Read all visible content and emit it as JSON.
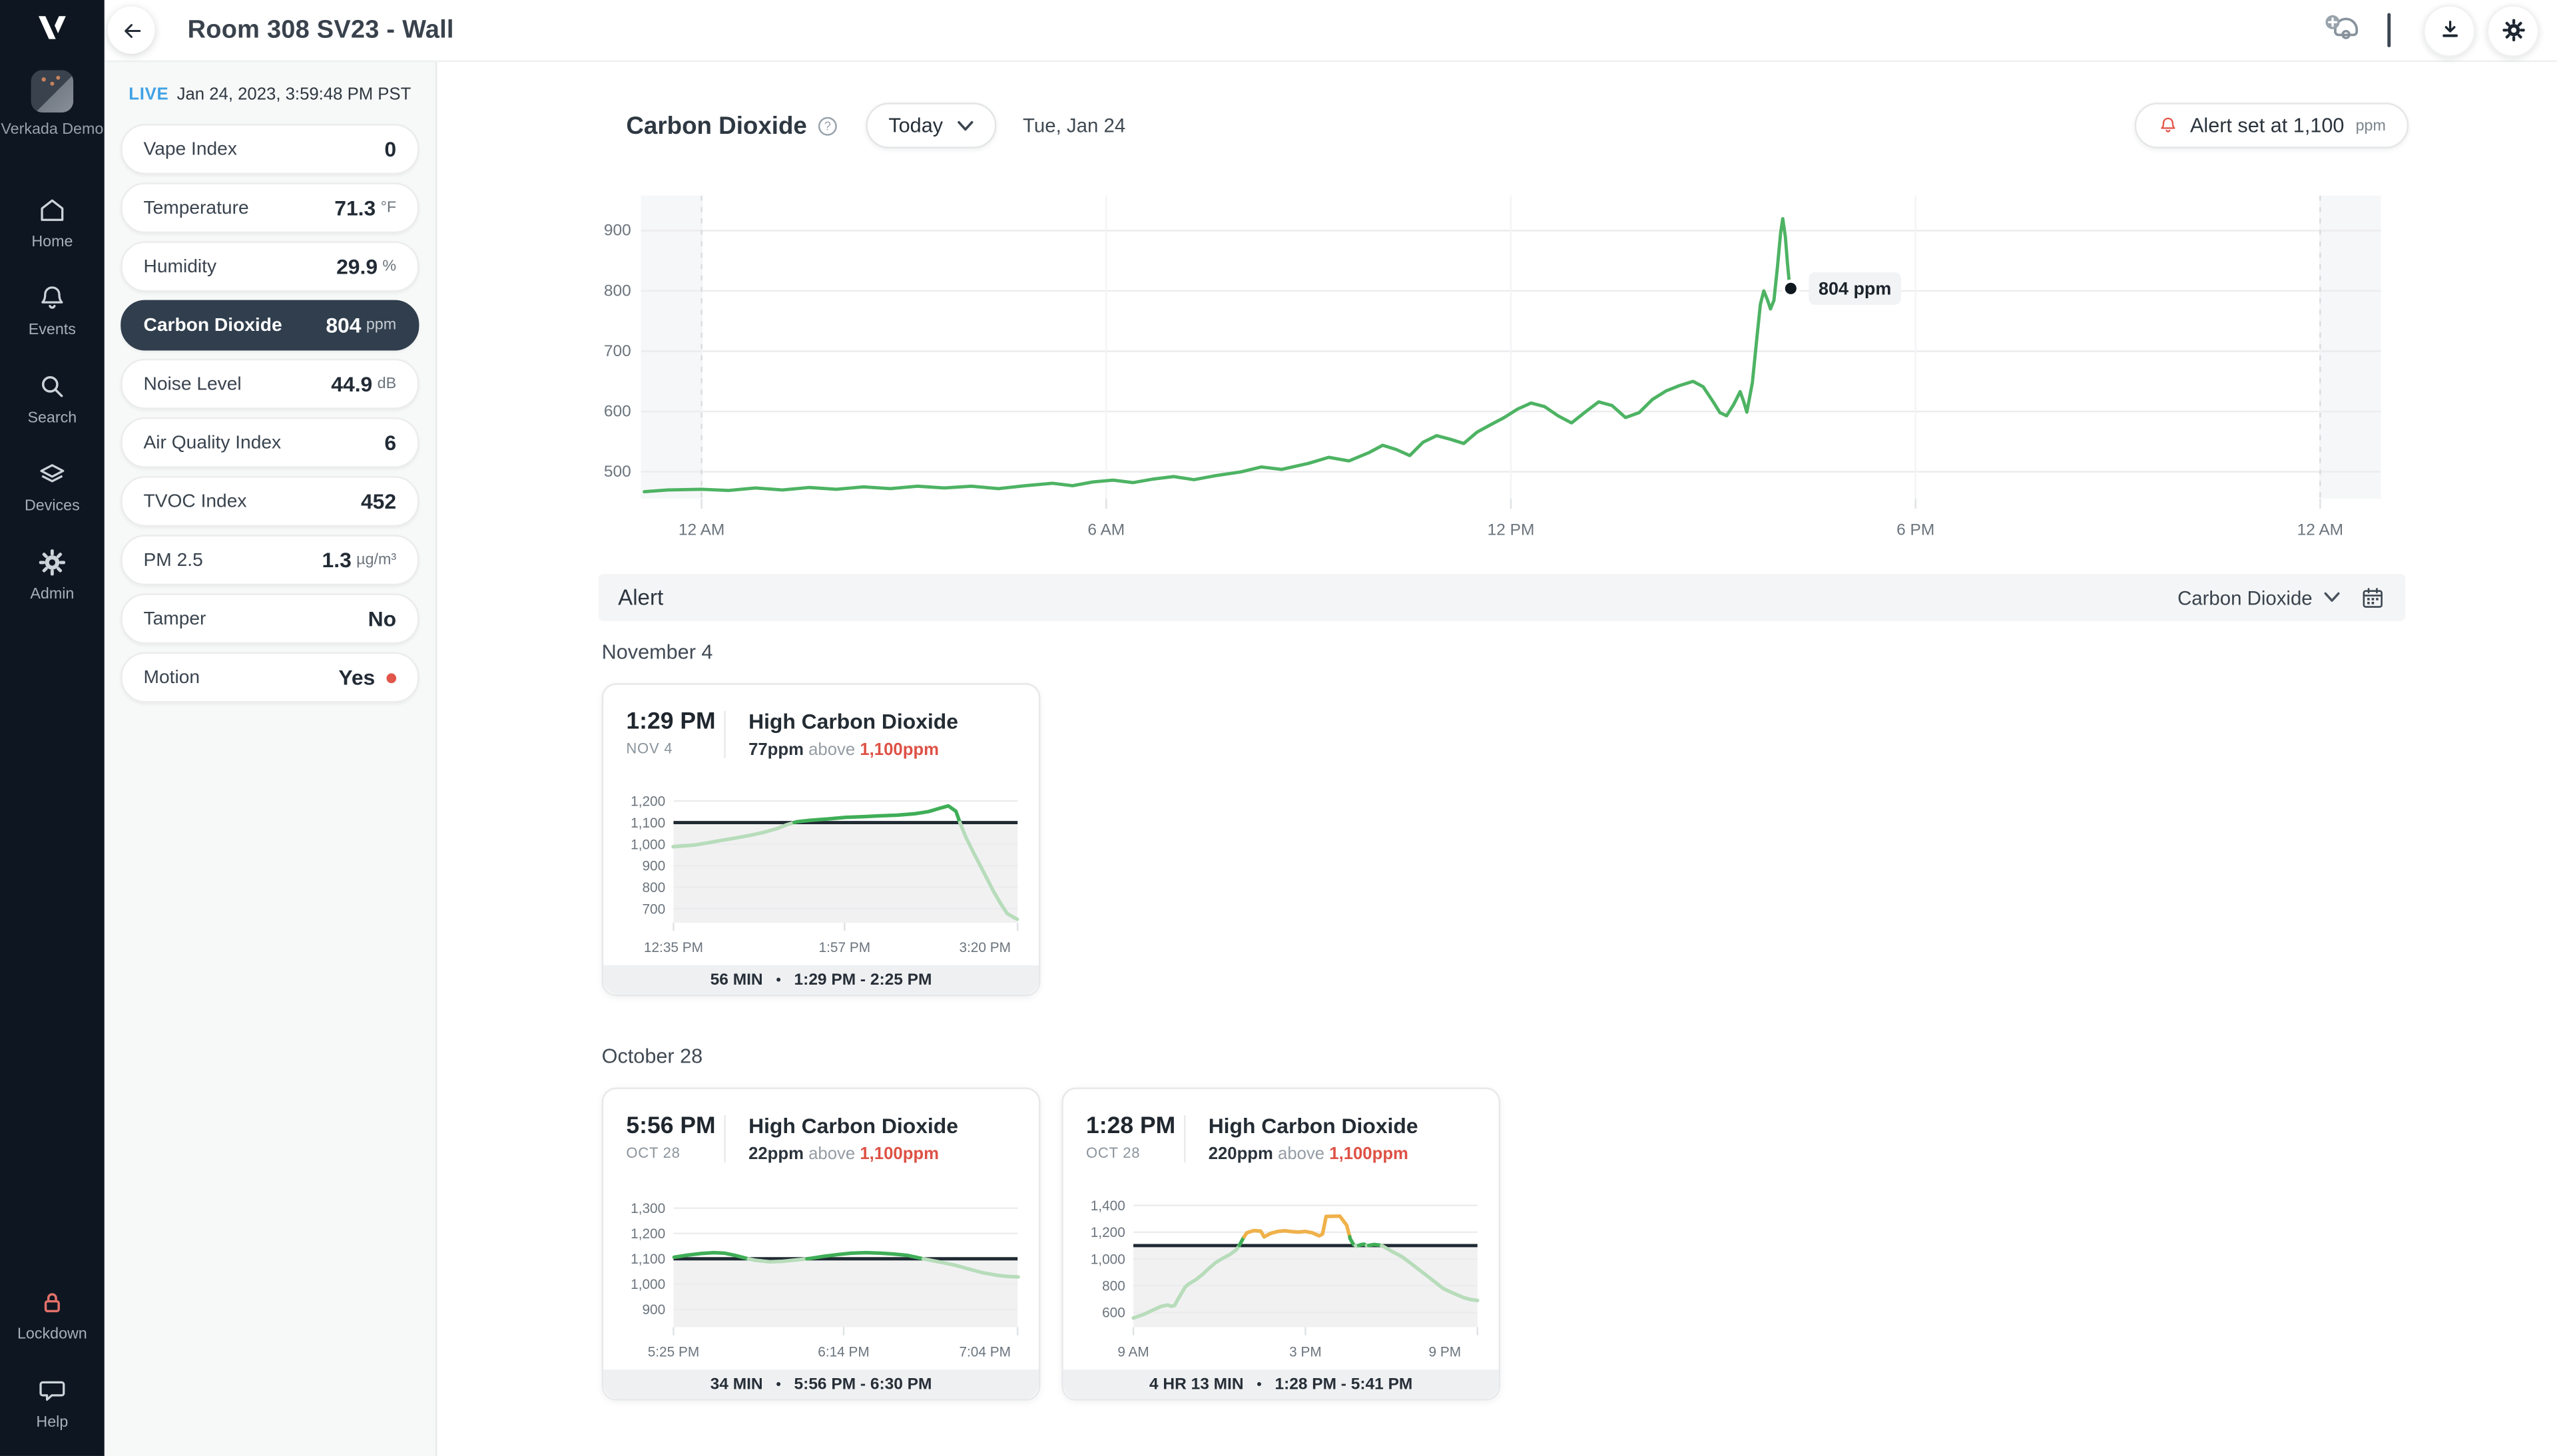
{
  "topbar": {
    "title": "Room 308 SV23 - Wall"
  },
  "nav": {
    "org_name": "Verkada Demo",
    "items": [
      {
        "label": "Home",
        "icon": "home"
      },
      {
        "label": "Events",
        "icon": "bell"
      },
      {
        "label": "Search",
        "icon": "magnifier"
      },
      {
        "label": "Devices",
        "icon": "layers"
      },
      {
        "label": "Admin",
        "icon": "gear"
      }
    ],
    "bottom_items": [
      {
        "label": "Lockdown",
        "icon": "lock"
      },
      {
        "label": "Help",
        "icon": "chat"
      }
    ]
  },
  "icons": {
    "back": "arrow-left",
    "add_camera": "camera-plus",
    "download": "download-tray",
    "settings": "gear",
    "alert": "bell",
    "calendar": "calendar",
    "info": "question-circle",
    "dropdown": "chevron-down",
    "motion": "red-dot"
  },
  "live": {
    "tag": "LIVE",
    "timestamp": "Jan 24, 2023, 3:59:48 PM PST"
  },
  "sensors": [
    {
      "label": "Vape Index",
      "value": "0",
      "unit": "",
      "selected": false,
      "dot": false
    },
    {
      "label": "Temperature",
      "value": "71.3",
      "unit": "°F",
      "selected": false,
      "dot": false
    },
    {
      "label": "Humidity",
      "value": "29.9",
      "unit": "%",
      "selected": false,
      "dot": false
    },
    {
      "label": "Carbon Dioxide",
      "value": "804",
      "unit": "ppm",
      "selected": true,
      "dot": false
    },
    {
      "label": "Noise Level",
      "value": "44.9",
      "unit": "dB",
      "selected": false,
      "dot": false
    },
    {
      "label": "Air Quality Index",
      "value": "6",
      "unit": "",
      "selected": false,
      "dot": false
    },
    {
      "label": "TVOC Index",
      "value": "452",
      "unit": "",
      "selected": false,
      "dot": false
    },
    {
      "label": "PM 2.5",
      "value": "1.3",
      "unit": "µg/m³",
      "selected": false,
      "dot": false
    },
    {
      "label": "Tamper",
      "value": "No",
      "unit": "",
      "selected": false,
      "dot": false
    },
    {
      "label": "Motion",
      "value": "Yes",
      "unit": "",
      "selected": false,
      "dot": true
    }
  ],
  "chart_header": {
    "title": "Carbon Dioxide",
    "range_selector": "Today",
    "date": "Tue, Jan 24",
    "alert_badge_text": "Alert set at 1,100",
    "alert_badge_unit": "ppm"
  },
  "alert_section": {
    "title": "Alert",
    "filter": "Carbon Dioxide"
  },
  "alert_groups": [
    {
      "date": "November 4",
      "cards": [
        {
          "time": "1:29 PM",
          "date": "NOV 4",
          "title": "High Carbon Dioxide",
          "amount": "77ppm",
          "above_word": "above",
          "threshold": "1,100ppm",
          "footer_duration": "56 MIN",
          "footer_range": "1:29 PM - 2:25 PM",
          "chart_index": 1
        }
      ]
    },
    {
      "date": "October 28",
      "cards": [
        {
          "time": "5:56 PM",
          "date": "OCT 28",
          "title": "High Carbon Dioxide",
          "amount": "22ppm",
          "above_word": "above",
          "threshold": "1,100ppm",
          "footer_duration": "34 MIN",
          "footer_range": "5:56 PM - 6:30 PM",
          "chart_index": 2
        },
        {
          "time": "1:28 PM",
          "date": "OCT 28",
          "title": "High Carbon Dioxide",
          "amount": "220ppm",
          "above_word": "above",
          "threshold": "1,100ppm",
          "footer_duration": "4 HR 13 MIN",
          "footer_range": "1:28 PM - 5:41 PM",
          "chart_index": 3
        }
      ]
    }
  ],
  "chart_data": [
    {
      "type": "line",
      "name": "carbon-dioxide-today",
      "ylabel": "ppm",
      "xlim": [
        -0.9,
        24.9
      ],
      "ylim": [
        455,
        958
      ],
      "x_ticks": [
        {
          "h": 0,
          "label": "12 AM"
        },
        {
          "h": 6,
          "label": "6 AM"
        },
        {
          "h": 12,
          "label": "12 PM"
        },
        {
          "h": 18,
          "label": "6 PM"
        },
        {
          "h": 24,
          "label": "12 AM"
        }
      ],
      "y_ticks": [
        {
          "v": 900,
          "label": "900"
        },
        {
          "v": 800,
          "label": "800"
        },
        {
          "v": 700,
          "label": "700"
        },
        {
          "v": 600,
          "label": "600"
        },
        {
          "v": 500,
          "label": "500"
        }
      ],
      "band_limits": [],
      "band_colors": [
        "#4db363"
      ],
      "edge_bands": [
        [
          -0.9,
          0
        ],
        [
          24,
          24.9
        ]
      ],
      "dashed_at": [
        0,
        24
      ],
      "marker": {
        "h": 16.15,
        "v": 804,
        "label": "804 ppm"
      },
      "points": [
        [
          -0.85,
          467
        ],
        [
          -0.5,
          470
        ],
        [
          0,
          471
        ],
        [
          0.4,
          469
        ],
        [
          0.8,
          473
        ],
        [
          1.2,
          470
        ],
        [
          1.6,
          474
        ],
        [
          2,
          471
        ],
        [
          2.4,
          475
        ],
        [
          2.8,
          472
        ],
        [
          3.2,
          476
        ],
        [
          3.6,
          473
        ],
        [
          4,
          476
        ],
        [
          4.4,
          472
        ],
        [
          4.8,
          477
        ],
        [
          5.2,
          481
        ],
        [
          5.5,
          477
        ],
        [
          5.8,
          483
        ],
        [
          6.1,
          486
        ],
        [
          6.4,
          482
        ],
        [
          6.7,
          488
        ],
        [
          7,
          492
        ],
        [
          7.3,
          487
        ],
        [
          7.6,
          493
        ],
        [
          8,
          500
        ],
        [
          8.3,
          508
        ],
        [
          8.6,
          504
        ],
        [
          9,
          514
        ],
        [
          9.3,
          524
        ],
        [
          9.6,
          518
        ],
        [
          9.9,
          532
        ],
        [
          10.1,
          544
        ],
        [
          10.3,
          537
        ],
        [
          10.5,
          527
        ],
        [
          10.7,
          549
        ],
        [
          10.9,
          560
        ],
        [
          11.1,
          554
        ],
        [
          11.3,
          547
        ],
        [
          11.5,
          566
        ],
        [
          11.7,
          578
        ],
        [
          11.9,
          590
        ],
        [
          12.1,
          604
        ],
        [
          12.3,
          614
        ],
        [
          12.5,
          608
        ],
        [
          12.7,
          593
        ],
        [
          12.9,
          581
        ],
        [
          13.1,
          599
        ],
        [
          13.3,
          616
        ],
        [
          13.5,
          610
        ],
        [
          13.7,
          590
        ],
        [
          13.9,
          598
        ],
        [
          14.1,
          620
        ],
        [
          14.3,
          634
        ],
        [
          14.5,
          643
        ],
        [
          14.7,
          650
        ],
        [
          14.85,
          641
        ],
        [
          15,
          616
        ],
        [
          15.1,
          598
        ],
        [
          15.2,
          593
        ],
        [
          15.3,
          611
        ],
        [
          15.4,
          633
        ],
        [
          15.45,
          617
        ],
        [
          15.5,
          599
        ],
        [
          15.58,
          648
        ],
        [
          15.65,
          726
        ],
        [
          15.7,
          778
        ],
        [
          15.75,
          800
        ],
        [
          15.8,
          786
        ],
        [
          15.85,
          770
        ],
        [
          15.9,
          784
        ],
        [
          15.95,
          838
        ],
        [
          16,
          896
        ],
        [
          16.03,
          920
        ],
        [
          16.07,
          890
        ],
        [
          16.1,
          846
        ],
        [
          16.13,
          812
        ],
        [
          16.15,
          804
        ]
      ]
    },
    {
      "type": "line",
      "name": "alert-nov4-129pm",
      "ylabel": "ppm",
      "threshold": 1100,
      "shade_below": true,
      "xlim": [
        12.583,
        15.333
      ],
      "ylim": [
        635,
        1240
      ],
      "x_ticks": [
        {
          "h": 12.583,
          "label": "12:35 PM"
        },
        {
          "h": 13.95,
          "label": "1:57 PM"
        },
        {
          "h": 15.333,
          "label": "3:20 PM"
        }
      ],
      "y_ticks": [
        {
          "v": 1200,
          "label": "1,200"
        },
        {
          "v": 1100,
          "label": "1,100"
        },
        {
          "v": 1000,
          "label": "1,000"
        },
        {
          "v": 900,
          "label": "900"
        },
        {
          "v": 800,
          "label": "800"
        },
        {
          "v": 700,
          "label": "700"
        }
      ],
      "band_limits": [
        1100
      ],
      "band_colors": [
        "#b7dcba",
        "#3fae57"
      ],
      "points": [
        [
          12.58,
          988
        ],
        [
          12.75,
          996
        ],
        [
          12.86,
          1006
        ],
        [
          12.97,
          1018
        ],
        [
          13.08,
          1028
        ],
        [
          13.19,
          1040
        ],
        [
          13.3,
          1054
        ],
        [
          13.41,
          1072
        ],
        [
          13.49,
          1090
        ],
        [
          13.57,
          1104
        ],
        [
          13.68,
          1111
        ],
        [
          13.82,
          1117
        ],
        [
          13.96,
          1124
        ],
        [
          14.1,
          1127
        ],
        [
          14.23,
          1131
        ],
        [
          14.37,
          1134
        ],
        [
          14.51,
          1141
        ],
        [
          14.62,
          1151
        ],
        [
          14.7,
          1164
        ],
        [
          14.76,
          1174
        ],
        [
          14.78,
          1177
        ],
        [
          14.84,
          1152
        ],
        [
          14.87,
          1103
        ],
        [
          14.92,
          1032
        ],
        [
          14.98,
          962
        ],
        [
          15.06,
          872
        ],
        [
          15.14,
          782
        ],
        [
          15.2,
          722
        ],
        [
          15.25,
          678
        ],
        [
          15.31,
          658
        ],
        [
          15.33,
          652
        ]
      ]
    },
    {
      "type": "line",
      "name": "alert-oct28-556pm",
      "ylabel": "ppm",
      "threshold": 1100,
      "shade_below": true,
      "xlim": [
        17.417,
        19.067
      ],
      "ylim": [
        830,
        1345
      ],
      "x_ticks": [
        {
          "h": 17.417,
          "label": "5:25 PM"
        },
        {
          "h": 18.233,
          "label": "6:14 PM"
        },
        {
          "h": 19.067,
          "label": "7:04 PM"
        }
      ],
      "y_ticks": [
        {
          "v": 1300,
          "label": "1,300"
        },
        {
          "v": 1200,
          "label": "1,200"
        },
        {
          "v": 1100,
          "label": "1,100"
        },
        {
          "v": 1000,
          "label": "1,000"
        },
        {
          "v": 900,
          "label": "900"
        }
      ],
      "band_limits": [
        1100
      ],
      "band_colors": [
        "#b7dcba",
        "#3fae57"
      ],
      "points": [
        [
          17.42,
          1106
        ],
        [
          17.48,
          1114
        ],
        [
          17.55,
          1121
        ],
        [
          17.61,
          1124
        ],
        [
          17.66,
          1122
        ],
        [
          17.71,
          1114
        ],
        [
          17.76,
          1103
        ],
        [
          17.81,
          1094
        ],
        [
          17.88,
          1088
        ],
        [
          17.94,
          1090
        ],
        [
          18.01,
          1096
        ],
        [
          18.08,
          1102
        ],
        [
          18.14,
          1110
        ],
        [
          18.21,
          1117
        ],
        [
          18.27,
          1122
        ],
        [
          18.34,
          1124
        ],
        [
          18.41,
          1122
        ],
        [
          18.47,
          1119
        ],
        [
          18.54,
          1113
        ],
        [
          18.59,
          1104
        ],
        [
          18.64,
          1096
        ],
        [
          18.7,
          1086
        ],
        [
          18.77,
          1074
        ],
        [
          18.84,
          1058
        ],
        [
          18.9,
          1045
        ],
        [
          18.97,
          1035
        ],
        [
          19.02,
          1030
        ],
        [
          19.07,
          1028
        ]
      ]
    },
    {
      "type": "line",
      "name": "alert-oct28-128pm",
      "ylabel": "ppm",
      "threshold": 1100,
      "shade_below": true,
      "xlim": [
        9,
        21
      ],
      "ylim": [
        490,
        1465
      ],
      "x_ticks": [
        {
          "h": 9,
          "label": "9 AM"
        },
        {
          "h": 15,
          "label": "3 PM"
        },
        {
          "h": 21,
          "label": "9 PM"
        }
      ],
      "y_ticks": [
        {
          "v": 1400,
          "label": "1,400"
        },
        {
          "v": 1200,
          "label": "1,200"
        },
        {
          "v": 1000,
          "label": "1,000"
        },
        {
          "v": 800,
          "label": "800"
        },
        {
          "v": 600,
          "label": "600"
        }
      ],
      "band_limits": [
        1100,
        1165
      ],
      "band_colors": [
        "#b7dcba",
        "#3fae57",
        "#efb14a"
      ],
      "points": [
        [
          9,
          558
        ],
        [
          9.36,
          585
        ],
        [
          9.72,
          622
        ],
        [
          9.96,
          645
        ],
        [
          10.2,
          656
        ],
        [
          10.32,
          646
        ],
        [
          10.44,
          652
        ],
        [
          10.56,
          700
        ],
        [
          10.8,
          788
        ],
        [
          10.92,
          812
        ],
        [
          11.16,
          842
        ],
        [
          11.4,
          882
        ],
        [
          11.64,
          930
        ],
        [
          11.88,
          974
        ],
        [
          12.12,
          1006
        ],
        [
          12.36,
          1032
        ],
        [
          12.6,
          1070
        ],
        [
          12.72,
          1110
        ],
        [
          12.84,
          1158
        ],
        [
          12.96,
          1196
        ],
        [
          13.2,
          1212
        ],
        [
          13.44,
          1208
        ],
        [
          13.56,
          1165
        ],
        [
          13.8,
          1192
        ],
        [
          14.04,
          1206
        ],
        [
          14.28,
          1210
        ],
        [
          14.52,
          1204
        ],
        [
          14.76,
          1200
        ],
        [
          15,
          1206
        ],
        [
          15.24,
          1196
        ],
        [
          15.48,
          1172
        ],
        [
          15.6,
          1186
        ],
        [
          15.72,
          1318
        ],
        [
          16.2,
          1320
        ],
        [
          16.44,
          1252
        ],
        [
          16.56,
          1152
        ],
        [
          16.68,
          1108
        ],
        [
          16.8,
          1094
        ],
        [
          16.92,
          1106
        ],
        [
          17.04,
          1110
        ],
        [
          17.16,
          1098
        ],
        [
          17.4,
          1108
        ],
        [
          17.64,
          1102
        ],
        [
          17.76,
          1088
        ],
        [
          18,
          1058
        ],
        [
          18.36,
          1018
        ],
        [
          18.6,
          980
        ],
        [
          18.96,
          920
        ],
        [
          19.32,
          860
        ],
        [
          19.56,
          820
        ],
        [
          19.8,
          780
        ],
        [
          20.16,
          744
        ],
        [
          20.52,
          710
        ],
        [
          20.76,
          696
        ],
        [
          21,
          690
        ]
      ]
    }
  ]
}
